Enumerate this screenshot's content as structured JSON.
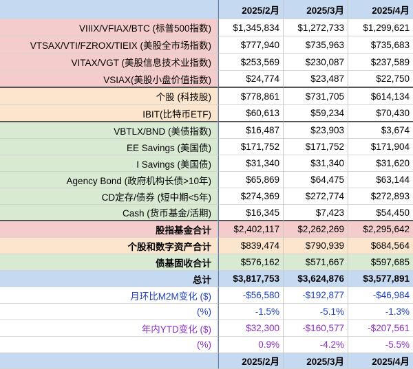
{
  "header": {
    "label": "",
    "months": [
      "2025/2月",
      "2025/3月",
      "2025/4月"
    ]
  },
  "rows": [
    {
      "label": "VIIIX/VFIAX/BTC (标普500指数)",
      "values": [
        "$1,345,834",
        "$1,272,733",
        "$1,299,621"
      ]
    },
    {
      "label": "VTSAX/VTI/FZROX/TIEIX (美股全市场指数)",
      "values": [
        "$777,940",
        "$735,963",
        "$735,683"
      ]
    },
    {
      "label": "VITAX/VGT (美股信息技术业指数)",
      "values": [
        "$253,569",
        "$230,087",
        "$237,589"
      ]
    },
    {
      "label": "VSIAX(美股小盘价值指数)",
      "values": [
        "$24,774",
        "$23,487",
        "$22,750"
      ]
    },
    {
      "label": "个股 (科技股)",
      "values": [
        "$778,861",
        "$731,705",
        "$614,134"
      ]
    },
    {
      "label": "IBIT(比特币ETF)",
      "values": [
        "$60,613",
        "$59,234",
        "$70,430"
      ]
    },
    {
      "label": "VBTLX/BND (美债指数)",
      "values": [
        "$16,487",
        "$23,903",
        "$3,674"
      ]
    },
    {
      "label": "EE Savings (美国债)",
      "values": [
        "$171,752",
        "$171,752",
        "$171,904"
      ]
    },
    {
      "label": "I Savings (美国债)",
      "values": [
        "$31,340",
        "$31,340",
        "$31,620"
      ]
    },
    {
      "label": "Agency Bond (政府机构长债>10年)",
      "values": [
        "$65,869",
        "$64,475",
        "$63,144"
      ]
    },
    {
      "label": "CD定存/债券 (短中期<5年)",
      "values": [
        "$274,369",
        "$272,774",
        "$272,893"
      ]
    },
    {
      "label": "Cash (货币基金/活期)",
      "values": [
        "$16,345",
        "$7,423",
        "$54,450"
      ]
    },
    {
      "label": "股指基金合计",
      "values": [
        "$2,402,117",
        "$2,262,269",
        "$2,295,642"
      ]
    },
    {
      "label": "个股和数字资产合计",
      "values": [
        "$839,474",
        "$790,939",
        "$684,564"
      ]
    },
    {
      "label": "债基固收合计",
      "values": [
        "$576,162",
        "$571,667",
        "$597,685"
      ]
    },
    {
      "label": "总计",
      "values": [
        "$3,817,753",
        "$3,624,876",
        "$3,577,891"
      ]
    },
    {
      "label": "月环比M2M变化 ($)",
      "values": [
        "-$56,580",
        "-$192,877",
        "-$46,984"
      ]
    },
    {
      "label": "(%)",
      "values": [
        "-1.5%",
        "-5.1%",
        "-1.3%"
      ]
    },
    {
      "label": "年内YTD变化 ($)",
      "values": [
        "$32,300",
        "-$160,577",
        "-$207,561"
      ]
    },
    {
      "label": "(%)",
      "values": [
        "0.9%",
        "-4.2%",
        "-5.5%"
      ]
    }
  ],
  "footer": {
    "label": "",
    "months": [
      "2025/2月",
      "2025/3月",
      "2025/4月"
    ]
  },
  "colors": {
    "header_blue": "#c5d9f1",
    "equity_pink": "#f4cccc",
    "stock_peach": "#fce5cd",
    "bond_green": "#d9ead3",
    "m2m_text": "#1f3fbf",
    "ytd_text": "#8a2fbf"
  }
}
